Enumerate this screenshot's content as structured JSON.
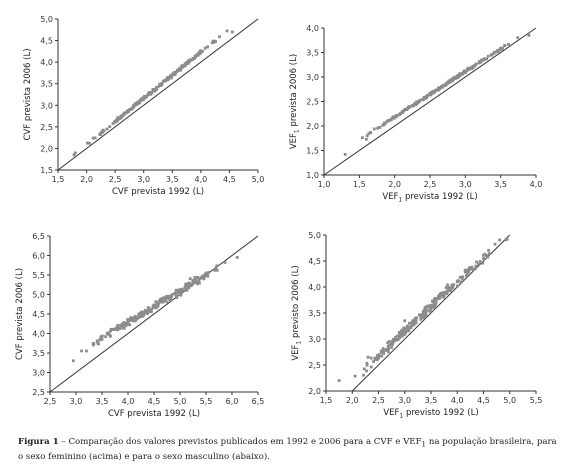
{
  "chart_data": [
    {
      "type": "scatter",
      "title": "",
      "xlabel": "CVF prevista 1992 (L)",
      "ylabel": "CVF prevista 2006 (L)",
      "xlim": [
        1.5,
        5.0
      ],
      "ylim": [
        1.5,
        5.0
      ],
      "xticks": [
        "1,5",
        "2,0",
        "2,5",
        "3,0",
        "3,5",
        "4,0",
        "4,5",
        "5,0"
      ],
      "yticks": [
        "1,5",
        "2,0",
        "2,5",
        "3,0",
        "3,5",
        "4,0",
        "4,5",
        "5,0"
      ],
      "identity_line": true,
      "grid": false,
      "scatter_model": {
        "intercept": -0.05,
        "slope": 1.07,
        "n": 220,
        "jitter": 0.035
      },
      "points": [
        [
          1.78,
          1.85
        ],
        [
          2.05,
          2.12
        ],
        [
          2.5,
          2.62
        ],
        [
          3.0,
          3.17
        ],
        [
          3.5,
          3.7
        ],
        [
          3.9,
          4.13
        ],
        [
          4.2,
          4.45
        ],
        [
          4.55,
          4.7
        ]
      ]
    },
    {
      "type": "scatter",
      "title": "",
      "xlabel_parts": [
        "VEF",
        "1",
        " prevista 1992 (L)"
      ],
      "ylabel_parts": [
        "VEF",
        "1",
        " prevista 2006 (L)"
      ],
      "xlim": [
        1.0,
        4.0
      ],
      "ylim": [
        1.0,
        4.0
      ],
      "xticks": [
        "1,0",
        "1,5",
        "2,0",
        "2,5",
        "3,0",
        "3,5",
        "4,0"
      ],
      "yticks": [
        "1,0",
        "1,5",
        "2,0",
        "2,5",
        "3,0",
        "3,5",
        "4,0"
      ],
      "identity_line": true,
      "grid": false,
      "scatter_model": {
        "intercept": 0.32,
        "slope": 0.93,
        "n": 230,
        "jitter": 0.025
      },
      "points": [
        [
          1.3,
          1.42
        ],
        [
          1.6,
          1.73
        ],
        [
          2.0,
          2.18
        ],
        [
          2.5,
          2.65
        ],
        [
          3.0,
          3.1
        ],
        [
          3.5,
          3.58
        ],
        [
          3.9,
          3.85
        ]
      ]
    },
    {
      "type": "scatter",
      "title": "",
      "xlabel": "CVF prevista 1992 (L)",
      "ylabel": "CVF prevista 2006 (L)",
      "xlim": [
        2.5,
        6.5
      ],
      "ylim": [
        2.5,
        6.5
      ],
      "xticks": [
        "2,5",
        "3,0",
        "3,5",
        "4,0",
        "4,5",
        "5,0",
        "5,5",
        "6,0",
        "6,5"
      ],
      "yticks": [
        "2,5",
        "3,0",
        "3,5",
        "4,0",
        "4,5",
        "5,0",
        "5,5",
        "6,0",
        "6,5"
      ],
      "identity_line": true,
      "grid": false,
      "scatter_model": {
        "intercept": 1.0,
        "slope": 0.82,
        "n": 230,
        "jitter": 0.1
      },
      "points": [
        [
          2.95,
          3.3
        ],
        [
          3.2,
          3.55
        ],
        [
          3.5,
          3.85
        ],
        [
          4.0,
          4.3
        ],
        [
          4.5,
          4.7
        ],
        [
          5.0,
          5.1
        ],
        [
          5.5,
          5.55
        ],
        [
          6.1,
          5.95
        ]
      ]
    },
    {
      "type": "scatter",
      "title": "",
      "xlabel_parts": [
        "VEF",
        "1",
        " previsto 1992 (L)"
      ],
      "ylabel_parts": [
        "VEF",
        "1",
        " previsto 2006 (L)"
      ],
      "xlim": [
        1.5,
        5.5
      ],
      "ylim": [
        2.0,
        5.0
      ],
      "xticks": [
        "1,5",
        "2,0",
        "2,5",
        "3,0",
        "3,5",
        "4,0",
        "4,5",
        "5,0",
        "5,5"
      ],
      "yticks": [
        "2,0",
        "2,5",
        "3,0",
        "3,5",
        "4,0",
        "4,5",
        "5,0"
      ],
      "identity_line": true,
      "grid": false,
      "scatter_model": {
        "intercept": 0.3,
        "slope": 0.95,
        "n": 240,
        "jitter": 0.09
      },
      "points": [
        [
          1.75,
          2.2
        ],
        [
          2.3,
          2.65
        ],
        [
          3.0,
          3.35
        ],
        [
          3.5,
          3.65
        ],
        [
          4.0,
          4.1
        ],
        [
          4.5,
          4.55
        ],
        [
          4.95,
          4.92
        ]
      ]
    }
  ],
  "caption": {
    "figure_label": "Figura 1",
    "text_before": " – Comparação dos valores previstos publicados em 1992 e 2006 para a CVF e VEF",
    "subscript": "1",
    "text_after": " na população brasileira, para o sexo feminino (acima) e para o sexo masculino (abaixo)."
  },
  "colors": {
    "points": "#8c8c8c",
    "axes": "#333333",
    "identity_line": "#333333"
  }
}
